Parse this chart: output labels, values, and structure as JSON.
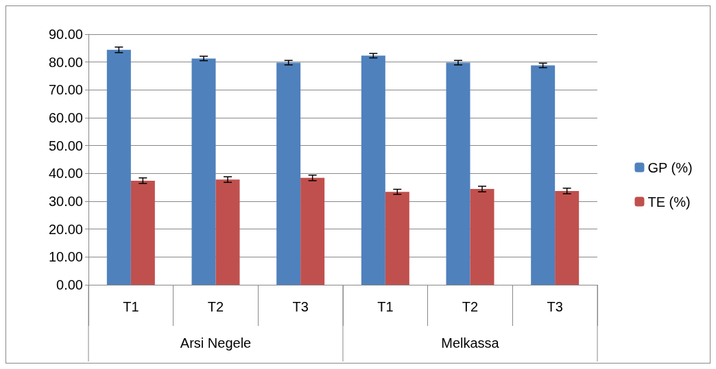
{
  "chart_data": {
    "type": "bar",
    "categories": [
      "T1",
      "T2",
      "T3",
      "T1",
      "T2",
      "T3"
    ],
    "annotations": [
      "Arsi Negele",
      "Melkassa"
    ],
    "series": [
      {
        "name": "GP (%)",
        "color": "#4f81bd",
        "values": [
          84.4,
          81.3,
          79.8,
          82.3,
          79.8,
          78.8
        ],
        "errors": [
          1,
          0.8,
          0.8,
          0.8,
          0.8,
          0.8
        ]
      },
      {
        "name": "TE (%)",
        "color": "#c0504d",
        "values": [
          37.4,
          37.8,
          38.4,
          33.4,
          34.4,
          33.7
        ],
        "errors": [
          1,
          1,
          1,
          0.9,
          1,
          1
        ]
      }
    ],
    "ylim": [
      0,
      90
    ],
    "yticks": [
      {
        "value": 0,
        "label": "0.00"
      },
      {
        "value": 10,
        "label": "10.00"
      },
      {
        "value": 20,
        "label": "20.00"
      },
      {
        "value": 30,
        "label": "30.00"
      },
      {
        "value": 40,
        "label": "40.00"
      },
      {
        "value": 50,
        "label": "50.00"
      },
      {
        "value": 60,
        "label": "60.00"
      },
      {
        "value": 70,
        "label": "70.00"
      },
      {
        "value": 80,
        "label": "80.00"
      },
      {
        "value": 90,
        "label": "90.00"
      }
    ],
    "grid": "y",
    "legend": "right"
  }
}
